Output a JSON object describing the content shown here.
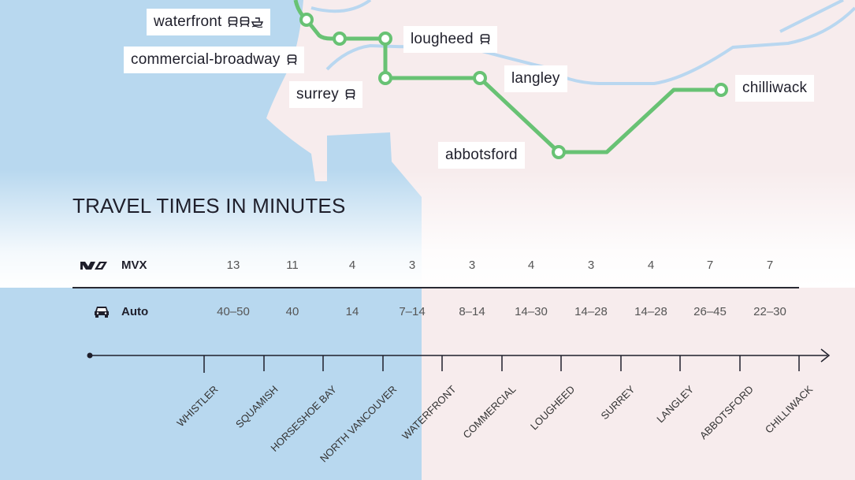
{
  "map": {
    "colors": {
      "water": "#b8d8ef",
      "land": "#f7eced",
      "mvx_line": "#68c274",
      "transit_line": "#b9d7f0"
    },
    "stations": [
      {
        "id": "waterfront",
        "label": "waterfront",
        "icons": [
          "train-icon",
          "train-icon",
          "ferry-icon"
        ]
      },
      {
        "id": "lougheed",
        "label": "lougheed",
        "icons": [
          "train-icon"
        ]
      },
      {
        "id": "commercial-broadway",
        "label": "commercial-broadway",
        "icons": [
          "train-icon"
        ]
      },
      {
        "id": "surrey",
        "label": "surrey",
        "icons": [
          "train-icon"
        ]
      },
      {
        "id": "langley",
        "label": "langley",
        "icons": []
      },
      {
        "id": "chilliwack",
        "label": "chilliwack",
        "icons": []
      },
      {
        "id": "abbotsford",
        "label": "abbotsford",
        "icons": []
      }
    ]
  },
  "travel": {
    "title": "TRAVEL TIMES IN MINUTES",
    "rows": [
      {
        "name": "MVX",
        "icon": "mvx-logo-icon",
        "values": [
          "13",
          "11",
          "4",
          "3",
          "3",
          "4",
          "3",
          "4",
          "7",
          "7"
        ]
      },
      {
        "name": "Auto",
        "icon": "car-icon",
        "values": [
          "40–50",
          "40",
          "14",
          "7–14",
          "8–14",
          "14–30",
          "14–28",
          "14–28",
          "26–45",
          "22–30"
        ]
      }
    ],
    "stops": [
      "WHISTLER",
      "SQUAMISH",
      "HORSESHOE BAY",
      "NORTH VANCOUVER",
      "WATERFRONT",
      "COMMERCIAL",
      "LOUGHEED",
      "SURREY",
      "LANGLEY",
      "ABBOTSFORD",
      "CHILLIWACK"
    ]
  }
}
